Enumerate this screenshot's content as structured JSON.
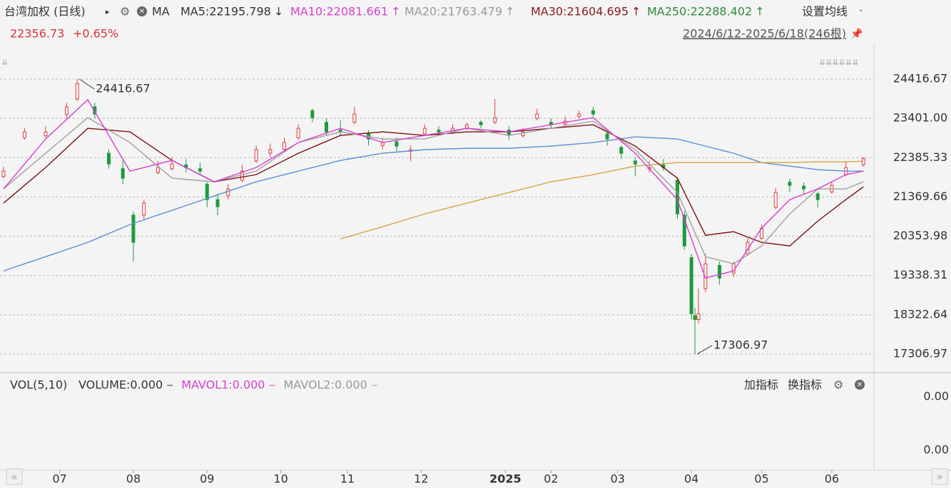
{
  "header": {
    "title": "台湾加权 (日线)",
    "indicator": "MA",
    "settings": "设置均线",
    "price": "22356.73",
    "change": "+0.65%",
    "range": "2024/6/12-2025/6/18(246根)"
  },
  "ma_legend": [
    {
      "label": "MA5:22195.798",
      "arrow": "↓",
      "color": "#333333"
    },
    {
      "label": "MA10:22081.661",
      "arrow": "↑",
      "color": "#d63fd1"
    },
    {
      "label": "MA20:21763.479",
      "arrow": "↑",
      "color": "#999999"
    },
    {
      "label": "MA30:21604.695",
      "arrow": "↑",
      "color": "#8b1a1a"
    },
    {
      "label": "MA250:22288.402",
      "arrow": "↑",
      "color": "#2e8b3a"
    }
  ],
  "volume": {
    "title": "VOL(5,10)",
    "items": [
      {
        "label": "VOLUME:0.000",
        "color": "#333333"
      },
      {
        "label": "MAVOL1:0.000",
        "color": "#d63fd1"
      },
      {
        "label": "MAVOL2:0.000",
        "color": "#999999"
      }
    ],
    "add": "加指标",
    "switch": "换指标",
    "yticks": [
      "0.00",
      "0.00"
    ]
  },
  "chart_data": {
    "type": "candlestick",
    "up_color": "#e04040",
    "down_color": "#1f9a3c",
    "ylim": [
      16883,
      25080
    ],
    "yticks": [
      24416.67,
      {
        "value": 23401,
        "label": "23401.00"
      },
      22385.33,
      21369.66,
      20353.98,
      19338.31,
      18322.64,
      17306.97
    ],
    "grid": true,
    "xlim": [
      -1,
      248
    ],
    "xticks": [
      {
        "value": 16,
        "label": "07"
      },
      {
        "value": 37,
        "label": "08"
      },
      {
        "value": 58,
        "label": "09"
      },
      {
        "value": 79,
        "label": "10"
      },
      {
        "value": 98,
        "label": "11"
      },
      {
        "value": 119,
        "label": "12"
      },
      {
        "value": 143,
        "label": "2025"
      },
      {
        "value": 156,
        "label": "02"
      },
      {
        "value": 175,
        "label": "03"
      },
      {
        "value": 196,
        "label": "04"
      },
      {
        "value": 216,
        "label": "05"
      },
      {
        "value": 236,
        "label": "06"
      }
    ],
    "candles": {
      "x": [
        0,
        6,
        12,
        18,
        21,
        26,
        30,
        34,
        37,
        40,
        44,
        48,
        52,
        56,
        58,
        61,
        64,
        68,
        72,
        76,
        80,
        84,
        88,
        92,
        96,
        100,
        104,
        108,
        112,
        116,
        120,
        124,
        128,
        132,
        136,
        140,
        144,
        148,
        152,
        156,
        160,
        164,
        168,
        172,
        176,
        180,
        184,
        188,
        192,
        194,
        196,
        197,
        198,
        200,
        204,
        208,
        212,
        216,
        220,
        224,
        228,
        232,
        236,
        240,
        245
      ],
      "open": [
        21900,
        22900,
        22950,
        23500,
        23900,
        23700,
        22500,
        22100,
        20900,
        20900,
        22000,
        22100,
        22200,
        22100,
        21700,
        21300,
        21400,
        21800,
        22300,
        22500,
        22600,
        22900,
        23600,
        23300,
        23100,
        23300,
        23000,
        22700,
        22800,
        22550,
        23000,
        23100,
        23050,
        23150,
        23300,
        23300,
        23100,
        22950,
        23400,
        23300,
        23250,
        23450,
        23600,
        23000,
        22650,
        22300,
        22100,
        22200,
        21800,
        20900,
        19800,
        18300,
        18200,
        19000,
        19600,
        19400,
        19900,
        20300,
        21100,
        21750,
        21650,
        21450,
        21500,
        21950,
        22200
      ],
      "high": [
        22150,
        23150,
        23200,
        23800,
        24416.67,
        23800,
        22600,
        22300,
        21000,
        21300,
        22300,
        22400,
        22350,
        22250,
        21750,
        21450,
        21700,
        22200,
        22700,
        22750,
        22900,
        23250,
        23650,
        23400,
        23350,
        23700,
        23100,
        22900,
        22900,
        22700,
        23250,
        23200,
        23250,
        23300,
        23350,
        23900,
        23200,
        23150,
        23650,
        23400,
        23450,
        23600,
        23700,
        23050,
        22700,
        22400,
        22300,
        22350,
        21850,
        21000,
        19900,
        18500,
        19000,
        19900,
        19700,
        19700,
        20300,
        20650,
        21600,
        21850,
        21750,
        21500,
        21750,
        22300,
        22400
      ],
      "low": [
        21850,
        22850,
        22900,
        23400,
        23850,
        23400,
        22100,
        21700,
        19700,
        20800,
        21950,
        22050,
        22000,
        21950,
        21100,
        20900,
        21300,
        21750,
        22250,
        22400,
        22550,
        22850,
        23300,
        22950,
        22950,
        23250,
        22700,
        22600,
        22550,
        22300,
        22950,
        22950,
        23000,
        23100,
        23150,
        23250,
        22850,
        22900,
        23350,
        23150,
        23200,
        23400,
        23450,
        22700,
        22350,
        21900,
        22000,
        22050,
        20800,
        20000,
        18200,
        17306.97,
        18100,
        18900,
        19100,
        19300,
        19850,
        20250,
        21050,
        21500,
        21450,
        21100,
        21450,
        21900,
        22150
      ],
      "close": [
        22038,
        23052,
        23052,
        23700,
        24300,
        23513,
        22222,
        21854,
        20194,
        21208,
        22130,
        22222,
        22130,
        22038,
        21300,
        21117,
        21577,
        22038,
        22591,
        22591,
        22776,
        23144,
        23420,
        23052,
        23052,
        23513,
        22868,
        22776,
        22683,
        22591,
        23144,
        23052,
        23144,
        23236,
        23236,
        23420,
        22960,
        23052,
        23513,
        23236,
        23328,
        23513,
        23513,
        22868,
        22499,
        22222,
        22130,
        22130,
        20931,
        20102,
        18350,
        18200,
        18350,
        19640,
        19272,
        19640,
        20194,
        20563,
        21485,
        21669,
        21577,
        21300,
        21669,
        22130,
        22356.73
      ]
    },
    "line_x": [
      0,
      12,
      24,
      36,
      48,
      60,
      72,
      84,
      96,
      108,
      120,
      132,
      144,
      156,
      168,
      180,
      192,
      200,
      208,
      216,
      224,
      232,
      240,
      245
    ],
    "series": [
      {
        "color": "#5b8fd6",
        "values": [
          19457,
          19825,
          20194,
          20655,
          21024,
          21393,
          21761,
          22038,
          22314,
          22499,
          22591,
          22628,
          22628,
          22683,
          22776,
          22923,
          22868,
          22683,
          22499,
          22259,
          22167,
          22075,
          22038,
          22038
        ]
      },
      {
        "color": "#d4a640",
        "values": [
          null,
          null,
          null,
          null,
          null,
          null,
          null,
          null,
          20286,
          20599,
          20931,
          21208,
          21485,
          21761,
          21946,
          22167,
          22259,
          22259,
          22259,
          22259,
          22259,
          22277,
          22277,
          22296
        ]
      },
      {
        "color": "#7a1010",
        "values": [
          21208,
          22130,
          23144,
          23052,
          22314,
          21761,
          21946,
          22499,
          22960,
          23052,
          22960,
          23052,
          23052,
          23144,
          23236,
          22683,
          21854,
          20379,
          20471,
          20194,
          20102,
          20747,
          21300,
          21632
        ]
      },
      {
        "color": "#a0a0a0",
        "values": [
          21577,
          22499,
          23420,
          22776,
          21854,
          21761,
          22038,
          22776,
          23052,
          22868,
          22868,
          23144,
          22960,
          23144,
          23328,
          22591,
          21485,
          19825,
          19640,
          20102,
          20931,
          21577,
          21577,
          21761
        ]
      },
      {
        "color": "#d63fd1",
        "values": [
          21577,
          22868,
          23882,
          22038,
          22314,
          21761,
          22130,
          22776,
          23144,
          22776,
          22960,
          23144,
          23052,
          23236,
          23420,
          22499,
          21300,
          19272,
          19457,
          20563,
          21300,
          21577,
          21946,
          22038
        ]
      }
    ],
    "annotations": [
      {
        "x": 21,
        "value": 24416.67,
        "label": "24416.67"
      },
      {
        "x": 197,
        "value": 17306.97,
        "label": "17306.97"
      }
    ]
  }
}
